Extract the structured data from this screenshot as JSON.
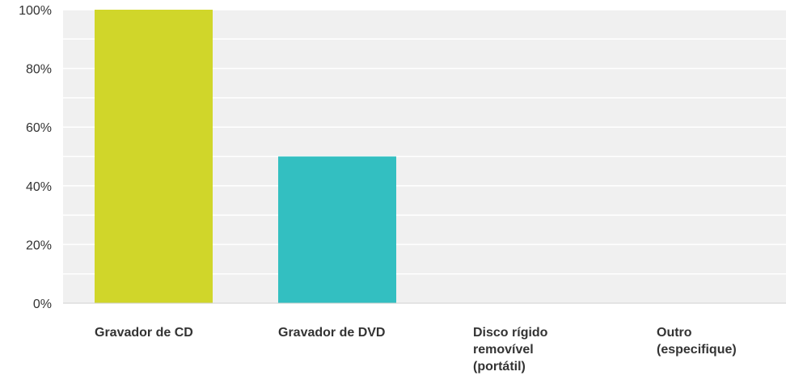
{
  "chart_data": {
    "type": "bar",
    "categories": [
      [
        "Gravador de CD"
      ],
      [
        "Gravador de DVD"
      ],
      [
        "Disco rígido",
        "removível",
        "(portátil)"
      ],
      [
        "Outro",
        "(especifique)"
      ]
    ],
    "values": [
      100,
      50,
      0,
      0
    ],
    "colors": [
      "#D0D62A",
      "#33BFC1",
      "#F7A543",
      "#F05B4F"
    ],
    "yticks": [
      "0%",
      "20%",
      "40%",
      "60%",
      "80%",
      "100%"
    ],
    "ylim": [
      0,
      100
    ],
    "grid": true,
    "plot_background": "#F0F0F0",
    "grid_color": "#FFFFFF",
    "title": "",
    "xlabel": "",
    "ylabel": ""
  }
}
